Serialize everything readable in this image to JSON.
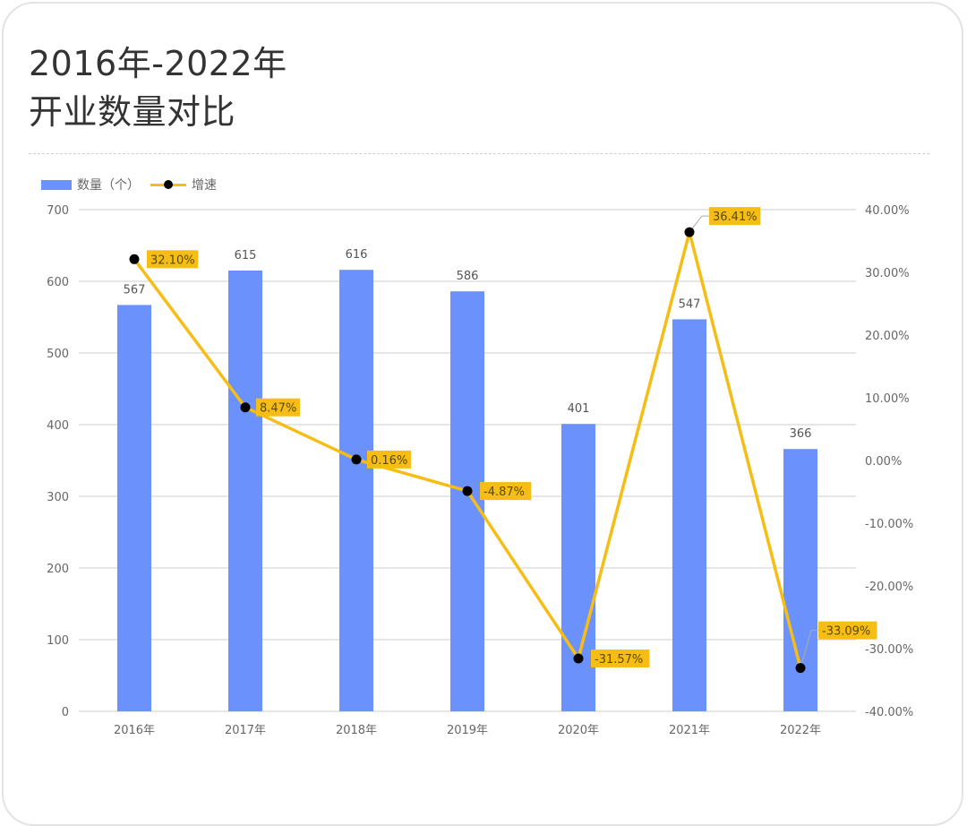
{
  "card": {
    "title_line1": "2016年-2022年",
    "title_line2": "开业数量对比"
  },
  "legend": {
    "bar_label": "数量（个）",
    "line_label": "增速"
  },
  "colors": {
    "bar": "#6b92fc",
    "line": "#f5bd15",
    "marker": "#000000",
    "label_bg": "#f5bd15",
    "grid": "#dddddd",
    "text": "#666666"
  },
  "chart_data": {
    "type": "bar+line",
    "title": "2016年-2022年 开业数量对比",
    "categories": [
      "2016年",
      "2017年",
      "2018年",
      "2019年",
      "2020年",
      "2021年",
      "2022年"
    ],
    "series": [
      {
        "name": "数量（个）",
        "type": "bar",
        "axis": "left",
        "values": [
          567,
          615,
          616,
          586,
          401,
          547,
          366
        ]
      },
      {
        "name": "增速",
        "type": "line",
        "axis": "right",
        "values": [
          32.1,
          8.47,
          0.16,
          -4.87,
          -31.57,
          36.41,
          -33.09
        ],
        "labels": [
          "32.10%",
          "8.47%",
          "0.16%",
          "-4.87%",
          "-31.57%",
          "36.41%",
          "-33.09%"
        ]
      }
    ],
    "left_axis": {
      "ylim": [
        0,
        700
      ],
      "ticks": [
        "0",
        "100",
        "200",
        "300",
        "400",
        "500",
        "600",
        "700"
      ]
    },
    "right_axis": {
      "ylim": [
        -40,
        40
      ],
      "ticks": [
        "40.00%",
        "30.00%",
        "20.00%",
        "10.00%",
        "0.00%",
        "-10.00%",
        "-20.00%",
        "-30.00%",
        "-40.00%"
      ]
    },
    "xlabel": "",
    "ylabel": "",
    "grid": true,
    "legend_position": "top-left"
  }
}
